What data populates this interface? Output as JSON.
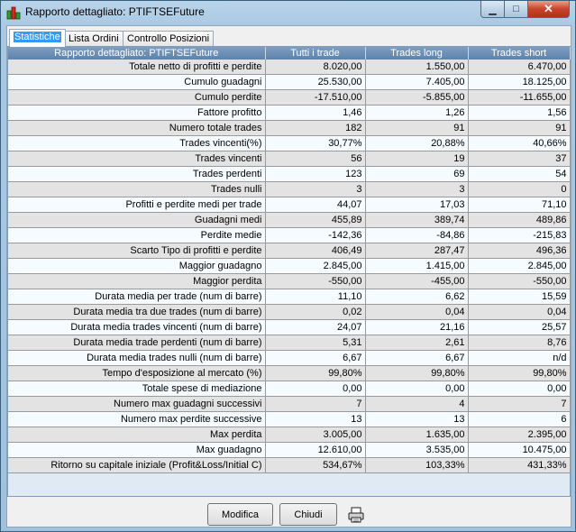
{
  "window": {
    "title": "Rapporto dettagliato: PTIFTSEFuture"
  },
  "tabs": [
    {
      "label": "Statistiche"
    },
    {
      "label": "Lista Ordini"
    },
    {
      "label": "Controllo Posizioni"
    }
  ],
  "table": {
    "headers": [
      "Rapporto dettagliato: PTIFTSEFuture",
      "Tutti i trade",
      "Trades long",
      "Trades short"
    ],
    "rows": [
      [
        "Totale netto di profitti e perdite",
        "8.020,00",
        "1.550,00",
        "6.470,00"
      ],
      [
        "Cumulo guadagni",
        "25.530,00",
        "7.405,00",
        "18.125,00"
      ],
      [
        "Cumulo perdite",
        "-17.510,00",
        "-5.855,00",
        "-11.655,00"
      ],
      [
        "Fattore profitto",
        "1,46",
        "1,26",
        "1,56"
      ],
      [
        "Numero totale trades",
        "182",
        "91",
        "91"
      ],
      [
        "Trades vincenti(%)",
        "30,77%",
        "20,88%",
        "40,66%"
      ],
      [
        "Trades vincenti",
        "56",
        "19",
        "37"
      ],
      [
        "Trades perdenti",
        "123",
        "69",
        "54"
      ],
      [
        "Trades nulli",
        "3",
        "3",
        "0"
      ],
      [
        "Profitti e perdite medi per trade",
        "44,07",
        "17,03",
        "71,10"
      ],
      [
        "Guadagni medi",
        "455,89",
        "389,74",
        "489,86"
      ],
      [
        "Perdite medie",
        "-142,36",
        "-84,86",
        "-215,83"
      ],
      [
        "Scarto Tipo di profitti e perdite",
        "406,49",
        "287,47",
        "496,36"
      ],
      [
        "Maggior guadagno",
        "2.845,00",
        "1.415,00",
        "2.845,00"
      ],
      [
        "Maggior perdita",
        "-550,00",
        "-455,00",
        "-550,00"
      ],
      [
        "Durata media per trade (num di barre)",
        "11,10",
        "6,62",
        "15,59"
      ],
      [
        "Durata media tra due trades (num di barre)",
        "0,02",
        "0,04",
        "0,04"
      ],
      [
        "Durata media trades vincenti (num di barre)",
        "24,07",
        "21,16",
        "25,57"
      ],
      [
        "Durata media trade perdenti (num di barre)",
        "5,31",
        "2,61",
        "8,76"
      ],
      [
        "Durata media trades nulli (num di barre)",
        "6,67",
        "6,67",
        "n/d"
      ],
      [
        "Tempo d'esposizione al mercato (%)",
        "99,80%",
        "99,80%",
        "99,80%"
      ],
      [
        "Totale spese di mediazione",
        "0,00",
        "0,00",
        "0,00"
      ],
      [
        "Numero max guadagni successivi",
        "7",
        "4",
        "7"
      ],
      [
        "Numero max perdite successive",
        "13",
        "13",
        "6"
      ],
      [
        "Max perdita",
        "3.005,00",
        "1.635,00",
        "2.395,00"
      ],
      [
        "Max guadagno",
        "12.610,00",
        "3.535,00",
        "10.475,00"
      ],
      [
        "Ritorno su capitale iniziale (Profit&Loss/Initial C)",
        "534,67%",
        "103,33%",
        "431,33%"
      ]
    ]
  },
  "buttons": {
    "modifica": "Modifica",
    "chiudi": "Chiudi"
  },
  "icons": {
    "app": "bar-chart-icon",
    "print": "printer-icon"
  },
  "colors": {
    "header_bg": "#6b8db5",
    "selected_tab": "#3399ff"
  }
}
